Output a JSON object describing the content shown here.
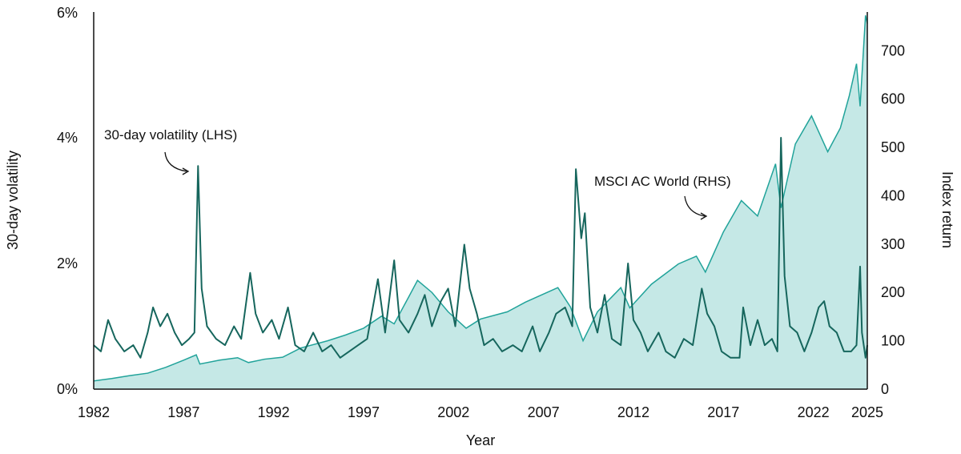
{
  "chart_data": {
    "type": "line",
    "xlabel": "Year",
    "ylabel_left": "30-day volatility",
    "ylabel_right": "Index return",
    "xlim": [
      1982,
      2025
    ],
    "ylim_left": [
      0,
      6
    ],
    "ylim_right": [
      0,
      780
    ],
    "x_ticks": [
      "1982",
      "1987",
      "1992",
      "1997",
      "2002",
      "2007",
      "2012",
      "2017",
      "2022",
      "2025"
    ],
    "y_ticks_left": [
      "0%",
      "2%",
      "4%",
      "6%"
    ],
    "y_ticks_right": [
      "0",
      "100",
      "200",
      "300",
      "400",
      "500",
      "600",
      "700"
    ],
    "grid": false,
    "colors": {
      "volatility": "#16665d",
      "index_line": "#21a39a",
      "index_fill": "#c5e8e6"
    },
    "annotations": [
      {
        "text": "30-day volatility (LHS)",
        "series": "volatility"
      },
      {
        "text": "MSCI AC World (RHS)",
        "series": "index"
      }
    ],
    "series": [
      {
        "name": "30-day volatility (LHS)",
        "axis": "left",
        "unit": "%",
        "points": [
          [
            1982.0,
            0.7
          ],
          [
            1982.4,
            0.6
          ],
          [
            1982.8,
            1.1
          ],
          [
            1983.2,
            0.8
          ],
          [
            1983.7,
            0.6
          ],
          [
            1984.2,
            0.7
          ],
          [
            1984.6,
            0.5
          ],
          [
            1985.0,
            0.9
          ],
          [
            1985.3,
            1.3
          ],
          [
            1985.7,
            1.0
          ],
          [
            1986.1,
            1.2
          ],
          [
            1986.5,
            0.9
          ],
          [
            1986.9,
            0.7
          ],
          [
            1987.3,
            0.8
          ],
          [
            1987.6,
            0.9
          ],
          [
            1987.8,
            3.55
          ],
          [
            1988.0,
            1.6
          ],
          [
            1988.3,
            1.0
          ],
          [
            1988.8,
            0.8
          ],
          [
            1989.3,
            0.7
          ],
          [
            1989.8,
            1.0
          ],
          [
            1990.2,
            0.8
          ],
          [
            1990.7,
            1.85
          ],
          [
            1991.0,
            1.2
          ],
          [
            1991.4,
            0.9
          ],
          [
            1991.9,
            1.1
          ],
          [
            1992.3,
            0.8
          ],
          [
            1992.8,
            1.3
          ],
          [
            1993.2,
            0.7
          ],
          [
            1993.7,
            0.6
          ],
          [
            1994.2,
            0.9
          ],
          [
            1994.7,
            0.6
          ],
          [
            1995.2,
            0.7
          ],
          [
            1995.7,
            0.5
          ],
          [
            1996.2,
            0.6
          ],
          [
            1996.7,
            0.7
          ],
          [
            1997.2,
            0.8
          ],
          [
            1997.8,
            1.75
          ],
          [
            1998.2,
            0.9
          ],
          [
            1998.7,
            2.05
          ],
          [
            1999.0,
            1.1
          ],
          [
            1999.5,
            0.9
          ],
          [
            2000.0,
            1.2
          ],
          [
            2000.4,
            1.5
          ],
          [
            2000.8,
            1.0
          ],
          [
            2001.3,
            1.4
          ],
          [
            2001.7,
            1.6
          ],
          [
            2002.1,
            1.0
          ],
          [
            2002.6,
            2.3
          ],
          [
            2002.9,
            1.6
          ],
          [
            2003.3,
            1.2
          ],
          [
            2003.7,
            0.7
          ],
          [
            2004.2,
            0.8
          ],
          [
            2004.7,
            0.6
          ],
          [
            2005.3,
            0.7
          ],
          [
            2005.8,
            0.6
          ],
          [
            2006.4,
            1.0
          ],
          [
            2006.8,
            0.6
          ],
          [
            2007.3,
            0.9
          ],
          [
            2007.7,
            1.2
          ],
          [
            2008.2,
            1.3
          ],
          [
            2008.6,
            1.0
          ],
          [
            2008.8,
            3.5
          ],
          [
            2009.1,
            2.4
          ],
          [
            2009.3,
            2.8
          ],
          [
            2009.6,
            1.3
          ],
          [
            2010.0,
            0.9
          ],
          [
            2010.4,
            1.5
          ],
          [
            2010.8,
            0.8
          ],
          [
            2011.3,
            0.7
          ],
          [
            2011.7,
            2.0
          ],
          [
            2012.0,
            1.1
          ],
          [
            2012.4,
            0.9
          ],
          [
            2012.8,
            0.6
          ],
          [
            2013.4,
            0.9
          ],
          [
            2013.8,
            0.6
          ],
          [
            2014.3,
            0.5
          ],
          [
            2014.8,
            0.8
          ],
          [
            2015.3,
            0.7
          ],
          [
            2015.8,
            1.6
          ],
          [
            2016.1,
            1.2
          ],
          [
            2016.5,
            1.0
          ],
          [
            2016.9,
            0.6
          ],
          [
            2017.4,
            0.5
          ],
          [
            2017.9,
            0.5
          ],
          [
            2018.1,
            1.3
          ],
          [
            2018.5,
            0.7
          ],
          [
            2018.9,
            1.1
          ],
          [
            2019.3,
            0.7
          ],
          [
            2019.7,
            0.8
          ],
          [
            2020.0,
            0.6
          ],
          [
            2020.2,
            4.0
          ],
          [
            2020.4,
            1.8
          ],
          [
            2020.7,
            1.0
          ],
          [
            2021.1,
            0.9
          ],
          [
            2021.5,
            0.6
          ],
          [
            2021.9,
            0.9
          ],
          [
            2022.3,
            1.3
          ],
          [
            2022.6,
            1.4
          ],
          [
            2022.9,
            1.0
          ],
          [
            2023.3,
            0.9
          ],
          [
            2023.7,
            0.6
          ],
          [
            2024.1,
            0.6
          ],
          [
            2024.4,
            0.7
          ],
          [
            2024.6,
            1.95
          ],
          [
            2024.7,
            0.9
          ],
          [
            2024.9,
            0.5
          ],
          [
            2025.0,
            0.7
          ]
        ]
      },
      {
        "name": "MSCI AC World (RHS)",
        "axis": "right",
        "unit": "index",
        "points": [
          [
            1982.0,
            17
          ],
          [
            1983.0,
            22
          ],
          [
            1984.0,
            28
          ],
          [
            1985.0,
            33
          ],
          [
            1986.0,
            45
          ],
          [
            1987.0,
            60
          ],
          [
            1987.7,
            71
          ],
          [
            1987.9,
            52
          ],
          [
            1989.0,
            60
          ],
          [
            1990.0,
            65
          ],
          [
            1990.6,
            55
          ],
          [
            1991.5,
            62
          ],
          [
            1992.5,
            66
          ],
          [
            1993.5,
            85
          ],
          [
            1995.0,
            100
          ],
          [
            1996.0,
            112
          ],
          [
            1997.0,
            126
          ],
          [
            1998.0,
            151
          ],
          [
            1998.7,
            135
          ],
          [
            1999.5,
            190
          ],
          [
            2000.0,
            225
          ],
          [
            2000.8,
            200
          ],
          [
            2001.7,
            160
          ],
          [
            2002.7,
            126
          ],
          [
            2003.5,
            145
          ],
          [
            2005.0,
            160
          ],
          [
            2006.0,
            180
          ],
          [
            2007.8,
            210
          ],
          [
            2008.5,
            170
          ],
          [
            2009.2,
            100
          ],
          [
            2010.0,
            160
          ],
          [
            2011.3,
            210
          ],
          [
            2011.8,
            168
          ],
          [
            2013.0,
            217
          ],
          [
            2014.5,
            259
          ],
          [
            2015.5,
            275
          ],
          [
            2016.0,
            242
          ],
          [
            2017.0,
            325
          ],
          [
            2018.0,
            390
          ],
          [
            2018.9,
            358
          ],
          [
            2019.9,
            466
          ],
          [
            2020.2,
            375
          ],
          [
            2021.0,
            507
          ],
          [
            2021.9,
            565
          ],
          [
            2022.8,
            491
          ],
          [
            2023.5,
            540
          ],
          [
            2024.0,
            607
          ],
          [
            2024.4,
            673
          ],
          [
            2024.6,
            585
          ],
          [
            2024.9,
            773
          ],
          [
            2025.0,
            756
          ]
        ]
      }
    ]
  }
}
